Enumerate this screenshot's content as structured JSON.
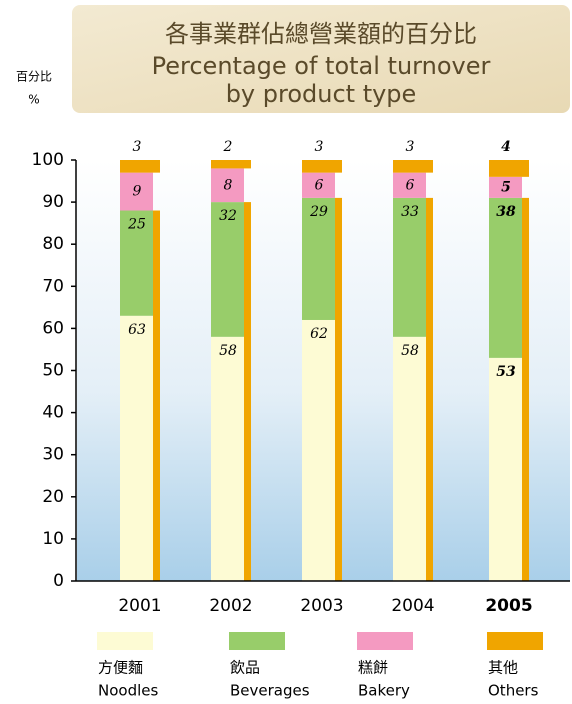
{
  "chart_data": {
    "type": "stacked_bar",
    "title": "各事業群佔總營業額的百分比",
    "subtitle": [
      "Percentage of total turnover",
      "by product type"
    ],
    "y_label": [
      "百分比",
      "%"
    ],
    "categories": [
      "2001",
      "2002",
      "2003",
      "2004",
      "2005"
    ],
    "series": [
      {
        "name": "方便麵",
        "name_en": "Noodles",
        "color": "#fdfbd4",
        "values": [
          63,
          58,
          62,
          58,
          53
        ]
      },
      {
        "name": "飲品",
        "name_en": "Beverages",
        "color": "#98cd6a",
        "values": [
          25,
          32,
          29,
          33,
          38
        ]
      },
      {
        "name": "糕餅",
        "name_en": "Bakery",
        "color": "#f49ac1",
        "values": [
          9,
          8,
          6,
          6,
          5
        ]
      },
      {
        "name": "其他",
        "name_en": "Others",
        "color": "#f0a500",
        "values": [
          3,
          2,
          3,
          3,
          4
        ]
      }
    ],
    "ylim": [
      0,
      100
    ],
    "yticks": [
      0,
      10,
      20,
      30,
      40,
      50,
      60,
      70,
      80,
      90,
      100
    ]
  }
}
